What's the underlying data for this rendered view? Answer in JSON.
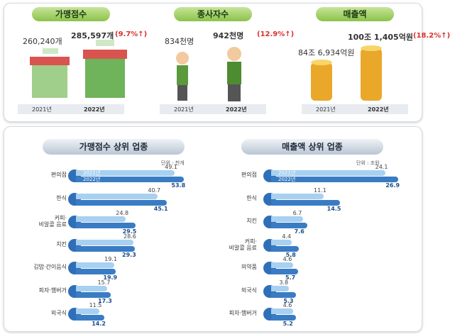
{
  "summary": [
    {
      "title": "가맹점수",
      "value_2021": "260,240개",
      "value_2022": "285,597개",
      "change": "(9.7%↑)",
      "years": [
        "2021년",
        "2022년"
      ]
    },
    {
      "title": "종사자수",
      "value_2021": "834천명",
      "value_2022": "942천명",
      "change": "(12.9%↑)",
      "years": [
        "2021년",
        "2022년"
      ]
    },
    {
      "title": "매출액",
      "value_2021": "84조 6,934억원",
      "value_2022": "100조 1,405억원",
      "change": "(18.2%↑)",
      "years": [
        "2021년",
        "2022년"
      ]
    }
  ],
  "chart_data": [
    {
      "type": "bar",
      "orientation": "horizontal",
      "title": "가맹점수 상위 업종",
      "unit": "단위 : 천개",
      "xlim": [
        0,
        60
      ],
      "categories": [
        "편의점",
        "한식",
        "커피·\n비알콜 음료",
        "치킨",
        "김밥·간이음식",
        "피자·햄버거",
        "외국식"
      ],
      "series": [
        {
          "name": "2021년",
          "color": "#a8d0f0",
          "values": [
            49.1,
            40.7,
            24.8,
            28.6,
            19.1,
            15.7,
            11.5
          ]
        },
        {
          "name": "2022년",
          "color": "#3a7cc4",
          "values": [
            53.8,
            45.1,
            29.5,
            29.3,
            19.9,
            17.3,
            14.2
          ]
        }
      ]
    },
    {
      "type": "bar",
      "orientation": "horizontal",
      "title": "매출액 상위 업종",
      "unit": "단위 : 조원",
      "xlim": [
        0,
        30
      ],
      "categories": [
        "편의점",
        "한식",
        "치킨",
        "커피·\n비알콜 음료",
        "의약품",
        "외국식",
        "피자·햄버거"
      ],
      "series": [
        {
          "name": "2021년",
          "color": "#a8d0f0",
          "values": [
            24.1,
            11.1,
            6.7,
            4.4,
            4.6,
            3.8,
            4.6
          ]
        },
        {
          "name": "2022년",
          "color": "#3a7cc4",
          "values": [
            26.9,
            14.5,
            7.6,
            5.8,
            5.7,
            5.3,
            5.2
          ]
        }
      ]
    }
  ]
}
